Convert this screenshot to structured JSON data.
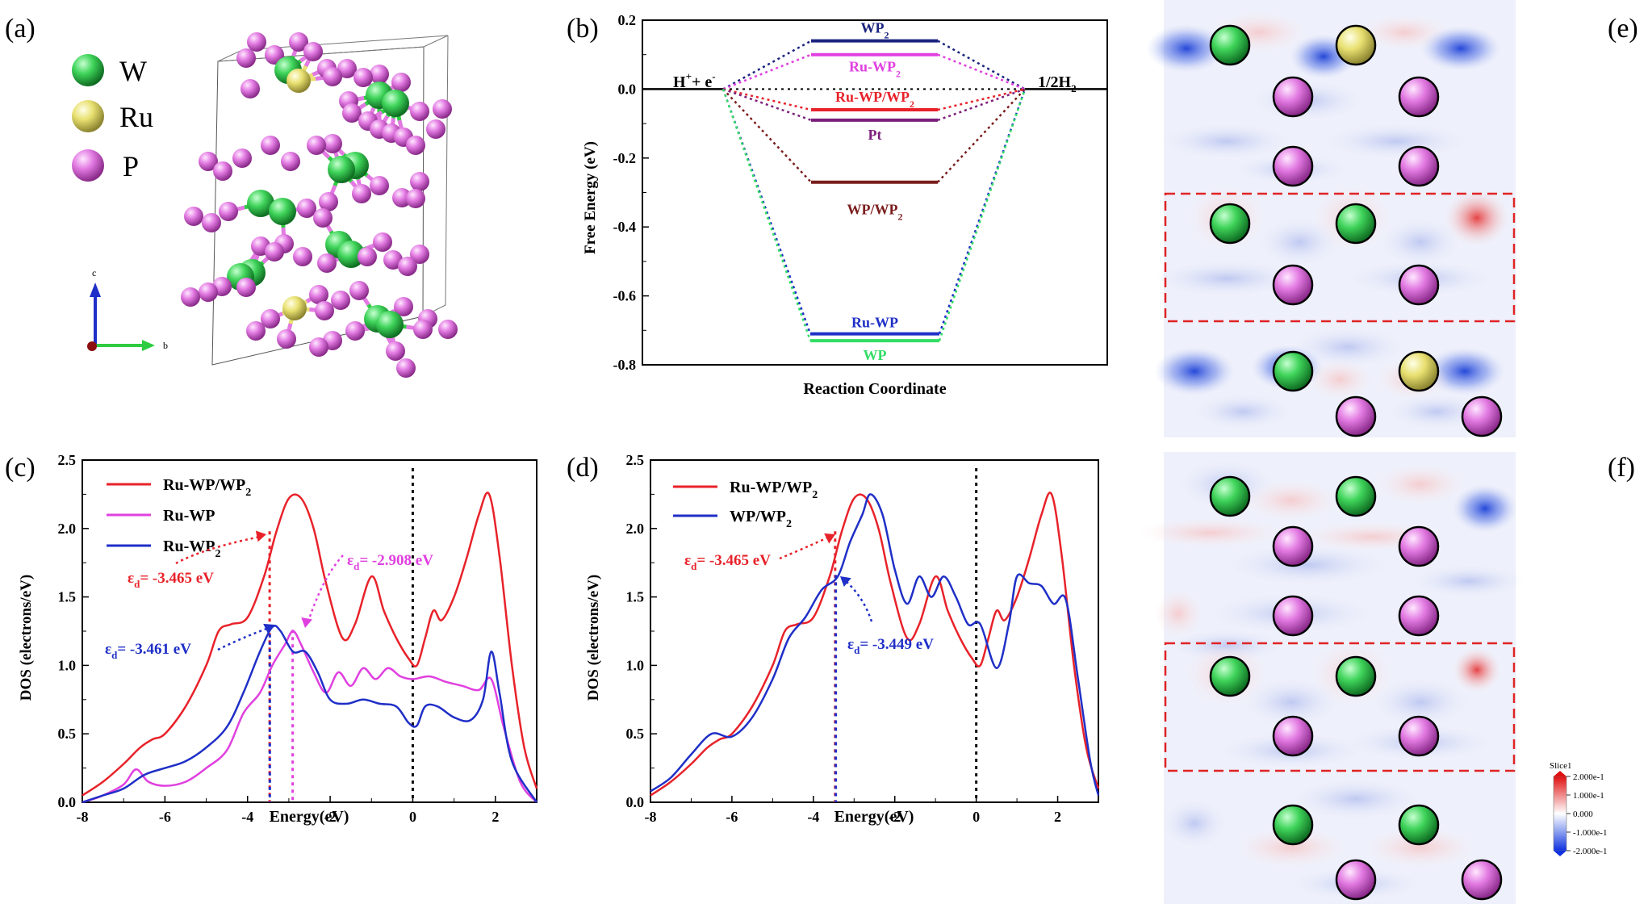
{
  "panel_labels": {
    "a": "(a)",
    "b": "(b)",
    "c": "(c)",
    "d": "(d)",
    "e": "(e)",
    "f": "(f)"
  },
  "structure": {
    "legend": [
      {
        "label": "W",
        "color": "#2ecc40"
      },
      {
        "label": "Ru",
        "color": "#e8e070"
      },
      {
        "label": "P",
        "color": "#e27ae2"
      }
    ],
    "axis_c": "c",
    "axis_b": "b"
  },
  "chart_data": [
    {
      "id": "b",
      "type": "line",
      "xlabel": "Reaction Coordinate",
      "ylabel": "Free Energy (eV)",
      "ylim": [
        -0.8,
        0.2
      ],
      "yticks": [
        "0.2",
        "0.0",
        "-0.2",
        "-0.4",
        "-0.6",
        "-0.8"
      ],
      "left_label_main": "H",
      "left_label_sup": "+",
      "left_label_rest": "+ e",
      "left_label_sup2": "-",
      "right_label_main": "1/2H",
      "right_label_sub": "2",
      "levels": [
        {
          "name": "WP",
          "name_sub": "2",
          "value": 0.14,
          "color": "#1a237e"
        },
        {
          "name": "Ru-WP",
          "name_sub": "2",
          "value": 0.1,
          "color": "#e040e0"
        },
        {
          "name": "Ru-WP/WP",
          "name_sub": "2",
          "value": -0.06,
          "color": "#e8222a"
        },
        {
          "name": "Pt",
          "name_sub": "",
          "value": -0.09,
          "color": "#7b1f7b"
        },
        {
          "name": "WP/WP",
          "name_sub": "2",
          "value": -0.27,
          "color": "#7a1d1d"
        },
        {
          "name": "Ru-WP",
          "name_sub": "",
          "value": -0.71,
          "color": "#1f2fc7"
        },
        {
          "name": "WP",
          "name_sub": "",
          "value": -0.73,
          "color": "#33dd66"
        }
      ]
    },
    {
      "id": "c",
      "type": "line",
      "xlabel": "Energy(eV)",
      "ylabel": "DOS (electrons/eV)",
      "xlim": [
        -8,
        3
      ],
      "ylim": [
        0,
        2.5
      ],
      "xticks": [
        "-8",
        "-6",
        "-4",
        "-2",
        "0",
        "2"
      ],
      "yticks": [
        "0.0",
        "0.5",
        "1.0",
        "1.5",
        "2.0",
        "2.5"
      ],
      "series": [
        {
          "name": "Ru-WP/WP",
          "name_sub": "2",
          "color": "#e8222a",
          "points": [
            [
              -8,
              0.05
            ],
            [
              -7.5,
              0.15
            ],
            [
              -7,
              0.28
            ],
            [
              -6.6,
              0.4
            ],
            [
              -6.3,
              0.46
            ],
            [
              -6,
              0.5
            ],
            [
              -5.5,
              0.7
            ],
            [
              -5,
              1.0
            ],
            [
              -4.7,
              1.25
            ],
            [
              -4.4,
              1.3
            ],
            [
              -4.0,
              1.35
            ],
            [
              -3.6,
              1.65
            ],
            [
              -3.3,
              1.98
            ],
            [
              -3.0,
              2.22
            ],
            [
              -2.7,
              2.22
            ],
            [
              -2.4,
              2.0
            ],
            [
              -2.1,
              1.6
            ],
            [
              -1.7,
              1.2
            ],
            [
              -1.4,
              1.3
            ],
            [
              -1.0,
              1.65
            ],
            [
              -0.7,
              1.4
            ],
            [
              -0.4,
              1.2
            ],
            [
              -0.1,
              1.05
            ],
            [
              0.1,
              1.0
            ],
            [
              0.3,
              1.2
            ],
            [
              0.5,
              1.4
            ],
            [
              0.7,
              1.33
            ],
            [
              1.0,
              1.5
            ],
            [
              1.3,
              1.78
            ],
            [
              1.6,
              2.1
            ],
            [
              1.85,
              2.25
            ],
            [
              2.1,
              1.8
            ],
            [
              2.4,
              1.0
            ],
            [
              2.7,
              0.4
            ],
            [
              3.0,
              0.1
            ]
          ]
        },
        {
          "name": "Ru-WP",
          "name_sub": "",
          "color": "#e040e0",
          "points": [
            [
              -8,
              0.0
            ],
            [
              -7.5,
              0.05
            ],
            [
              -7,
              0.13
            ],
            [
              -6.7,
              0.24
            ],
            [
              -6.4,
              0.15
            ],
            [
              -6,
              0.12
            ],
            [
              -5.5,
              0.15
            ],
            [
              -5,
              0.25
            ],
            [
              -4.5,
              0.38
            ],
            [
              -4.1,
              0.65
            ],
            [
              -3.7,
              0.8
            ],
            [
              -3.4,
              1.0
            ],
            [
              -3.1,
              1.15
            ],
            [
              -2.9,
              1.25
            ],
            [
              -2.7,
              1.15
            ],
            [
              -2.4,
              0.95
            ],
            [
              -2.1,
              0.8
            ],
            [
              -1.8,
              0.95
            ],
            [
              -1.5,
              0.85
            ],
            [
              -1.2,
              0.98
            ],
            [
              -0.9,
              0.9
            ],
            [
              -0.6,
              0.98
            ],
            [
              -0.3,
              0.92
            ],
            [
              0.0,
              0.9
            ],
            [
              0.4,
              0.92
            ],
            [
              0.8,
              0.88
            ],
            [
              1.2,
              0.85
            ],
            [
              1.6,
              0.82
            ],
            [
              1.9,
              0.9
            ],
            [
              2.2,
              0.55
            ],
            [
              2.6,
              0.15
            ],
            [
              3.0,
              0.0
            ]
          ]
        },
        {
          "name": "Ru-WP",
          "name_sub": "2",
          "color": "#1f2fc7",
          "points": [
            [
              -8,
              0.0
            ],
            [
              -7.5,
              0.05
            ],
            [
              -7,
              0.1
            ],
            [
              -6.5,
              0.2
            ],
            [
              -6,
              0.25
            ],
            [
              -5.5,
              0.3
            ],
            [
              -5,
              0.4
            ],
            [
              -4.5,
              0.55
            ],
            [
              -4.1,
              0.8
            ],
            [
              -3.7,
              1.1
            ],
            [
              -3.4,
              1.28
            ],
            [
              -3.2,
              1.25
            ],
            [
              -2.9,
              1.1
            ],
            [
              -2.6,
              1.1
            ],
            [
              -2.3,
              0.95
            ],
            [
              -2.0,
              0.75
            ],
            [
              -1.6,
              0.72
            ],
            [
              -1.2,
              0.75
            ],
            [
              -0.8,
              0.72
            ],
            [
              -0.4,
              0.7
            ],
            [
              -0.1,
              0.58
            ],
            [
              0.1,
              0.56
            ],
            [
              0.3,
              0.7
            ],
            [
              0.6,
              0.7
            ],
            [
              1.0,
              0.62
            ],
            [
              1.4,
              0.6
            ],
            [
              1.7,
              0.75
            ],
            [
              1.9,
              1.1
            ],
            [
              2.1,
              0.8
            ],
            [
              2.4,
              0.3
            ],
            [
              3.0,
              0.0
            ]
          ]
        }
      ],
      "vlines": [
        {
          "x": 0,
          "color": "#111111"
        },
        {
          "x": -3.465,
          "color": "#e8222a"
        },
        {
          "x": -3.461,
          "color": "#1f2fc7"
        },
        {
          "x": -2.908,
          "color": "#e040e0"
        }
      ],
      "annotations": [
        {
          "sym": "ε",
          "sub": "d",
          "text": "= -3.465 eV",
          "color": "#e8222a"
        },
        {
          "sym": "ε",
          "sub": "d",
          "text": "= -2.908 eV",
          "color": "#e040e0"
        },
        {
          "sym": "ε",
          "sub": "d",
          "text": "= -3.461 eV",
          "color": "#1f2fc7"
        }
      ]
    },
    {
      "id": "d",
      "type": "line",
      "xlabel": "Energy(eV)",
      "ylabel": "DOS (electrons/eV)",
      "xlim": [
        -8,
        3
      ],
      "ylim": [
        0,
        2.5
      ],
      "xticks": [
        "-8",
        "-6",
        "-4",
        "-2",
        "0",
        "2"
      ],
      "yticks": [
        "0.0",
        "0.5",
        "1.0",
        "1.5",
        "2.0",
        "2.5"
      ],
      "series": [
        {
          "name": "Ru-WP/WP",
          "name_sub": "2",
          "color": "#e8222a",
          "points": [
            [
              -8,
              0.05
            ],
            [
              -7.5,
              0.15
            ],
            [
              -7,
              0.28
            ],
            [
              -6.6,
              0.4
            ],
            [
              -6.3,
              0.46
            ],
            [
              -6,
              0.5
            ],
            [
              -5.5,
              0.7
            ],
            [
              -5,
              1.0
            ],
            [
              -4.7,
              1.25
            ],
            [
              -4.4,
              1.3
            ],
            [
              -4.0,
              1.35
            ],
            [
              -3.6,
              1.65
            ],
            [
              -3.3,
              1.98
            ],
            [
              -3.0,
              2.22
            ],
            [
              -2.7,
              2.22
            ],
            [
              -2.4,
              2.0
            ],
            [
              -2.1,
              1.6
            ],
            [
              -1.7,
              1.2
            ],
            [
              -1.4,
              1.3
            ],
            [
              -1.0,
              1.65
            ],
            [
              -0.7,
              1.4
            ],
            [
              -0.4,
              1.2
            ],
            [
              -0.1,
              1.05
            ],
            [
              0.1,
              1.0
            ],
            [
              0.3,
              1.2
            ],
            [
              0.5,
              1.4
            ],
            [
              0.7,
              1.33
            ],
            [
              1.0,
              1.5
            ],
            [
              1.3,
              1.78
            ],
            [
              1.6,
              2.1
            ],
            [
              1.85,
              2.25
            ],
            [
              2.1,
              1.8
            ],
            [
              2.4,
              1.0
            ],
            [
              2.7,
              0.4
            ],
            [
              3.0,
              0.1
            ]
          ]
        },
        {
          "name": "WP/WP",
          "name_sub": "2",
          "color": "#1f2fc7",
          "points": [
            [
              -8,
              0.08
            ],
            [
              -7.5,
              0.18
            ],
            [
              -7,
              0.35
            ],
            [
              -6.5,
              0.5
            ],
            [
              -6,
              0.48
            ],
            [
              -5.5,
              0.62
            ],
            [
              -5,
              0.9
            ],
            [
              -4.6,
              1.2
            ],
            [
              -4.2,
              1.35
            ],
            [
              -3.8,
              1.55
            ],
            [
              -3.4,
              1.65
            ],
            [
              -3.1,
              1.9
            ],
            [
              -2.8,
              2.1
            ],
            [
              -2.6,
              2.25
            ],
            [
              -2.3,
              2.1
            ],
            [
              -2.0,
              1.7
            ],
            [
              -1.7,
              1.45
            ],
            [
              -1.4,
              1.65
            ],
            [
              -1.1,
              1.5
            ],
            [
              -0.8,
              1.65
            ],
            [
              -0.5,
              1.5
            ],
            [
              -0.2,
              1.3
            ],
            [
              0.1,
              1.3
            ],
            [
              0.5,
              0.98
            ],
            [
              0.8,
              1.3
            ],
            [
              1.0,
              1.65
            ],
            [
              1.3,
              1.6
            ],
            [
              1.6,
              1.58
            ],
            [
              1.9,
              1.45
            ],
            [
              2.2,
              1.48
            ],
            [
              2.5,
              0.9
            ],
            [
              2.8,
              0.3
            ],
            [
              3.0,
              0.05
            ]
          ]
        }
      ],
      "vlines": [
        {
          "x": 0,
          "color": "#111111"
        },
        {
          "x": -3.465,
          "color": "#e8222a"
        },
        {
          "x": -3.449,
          "color": "#1f2fc7"
        }
      ],
      "annotations": [
        {
          "sym": "ε",
          "sub": "d",
          "text": "= -3.465 eV",
          "color": "#e8222a"
        },
        {
          "sym": "ε",
          "sub": "d",
          "text": "= -3.449 eV",
          "color": "#1f2fc7"
        }
      ]
    }
  ],
  "colorbar": {
    "title": "Slice1",
    "ticks": [
      "2.000e-1",
      "1.000e-1",
      "0.000",
      "-1.000e-1",
      "-2.000e-1"
    ]
  }
}
